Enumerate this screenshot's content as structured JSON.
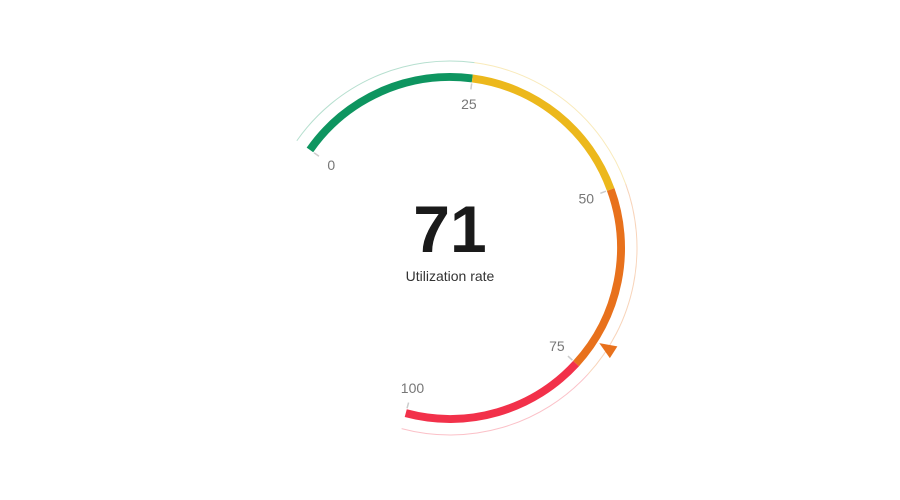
{
  "chart_data": {
    "type": "gauge",
    "value": 71,
    "value_text": "71",
    "label": "Utilization rate",
    "range": [
      0,
      100
    ],
    "ticks": [
      {
        "value": 0,
        "text": "0"
      },
      {
        "value": 25,
        "text": "25"
      },
      {
        "value": 50,
        "text": "50"
      },
      {
        "value": 75,
        "text": "75"
      },
      {
        "value": 100,
        "text": "100"
      }
    ],
    "bands": [
      {
        "from": 0,
        "to": 25,
        "color": "#0e9560"
      },
      {
        "from": 25,
        "to": 50,
        "color": "#ecb81c"
      },
      {
        "from": 50,
        "to": 75,
        "color": "#e8711c"
      },
      {
        "from": 75,
        "to": 100,
        "color": "#f2314a"
      }
    ],
    "pointer_color": "#e8711c"
  }
}
